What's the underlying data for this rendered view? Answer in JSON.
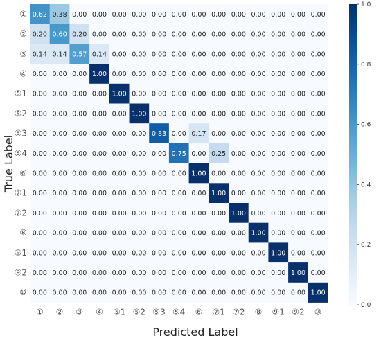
{
  "chart_data": {
    "type": "heatmap",
    "xlabel": "Predicted Label",
    "ylabel": "True Label",
    "labels": [
      "①",
      "②",
      "③",
      "④",
      "⑤1",
      "⑤2",
      "⑤3",
      "⑤4",
      "⑥",
      "⑦1",
      "⑦2",
      "⑧",
      "⑨1",
      "⑨2",
      "⑩"
    ],
    "matrix": [
      [
        0.62,
        0.38,
        0,
        0,
        0,
        0,
        0,
        0,
        0,
        0,
        0,
        0,
        0,
        0,
        0
      ],
      [
        0.2,
        0.6,
        0.2,
        0,
        0,
        0,
        0,
        0,
        0,
        0,
        0,
        0,
        0,
        0,
        0
      ],
      [
        0.14,
        0.14,
        0.57,
        0.14,
        0,
        0,
        0,
        0,
        0,
        0,
        0,
        0,
        0,
        0,
        0
      ],
      [
        0,
        0,
        0,
        1.0,
        0,
        0,
        0,
        0,
        0,
        0,
        0,
        0,
        0,
        0,
        0
      ],
      [
        0,
        0,
        0,
        0,
        1.0,
        0,
        0,
        0,
        0,
        0,
        0,
        0,
        0,
        0,
        0
      ],
      [
        0,
        0,
        0,
        0,
        0,
        1.0,
        0,
        0,
        0,
        0,
        0,
        0,
        0,
        0,
        0
      ],
      [
        0,
        0,
        0,
        0,
        0,
        0,
        0.83,
        0,
        0.17,
        0,
        0,
        0,
        0,
        0,
        0
      ],
      [
        0,
        0,
        0,
        0,
        0,
        0,
        0,
        0.75,
        0,
        0.25,
        0,
        0,
        0,
        0,
        0
      ],
      [
        0,
        0,
        0,
        0,
        0,
        0,
        0,
        0,
        1.0,
        0,
        0,
        0,
        0,
        0,
        0
      ],
      [
        0,
        0,
        0,
        0,
        0,
        0,
        0,
        0,
        0,
        1.0,
        0,
        0,
        0,
        0,
        0
      ],
      [
        0,
        0,
        0,
        0,
        0,
        0,
        0,
        0,
        0,
        0,
        1.0,
        0,
        0,
        0,
        0
      ],
      [
        0,
        0,
        0,
        0,
        0,
        0,
        0,
        0,
        0,
        0,
        0,
        1.0,
        0,
        0,
        0
      ],
      [
        0,
        0,
        0,
        0,
        0,
        0,
        0,
        0,
        0,
        0,
        0,
        0,
        1.0,
        0,
        0
      ],
      [
        0,
        0,
        0,
        0,
        0,
        0,
        0,
        0,
        0,
        0,
        0,
        0,
        0,
        1.0,
        0
      ],
      [
        0,
        0,
        0,
        0,
        0,
        0,
        0,
        0,
        0,
        0,
        0,
        0,
        0,
        0,
        1.0
      ]
    ],
    "colorbar": {
      "range": [
        0.0,
        1.0
      ],
      "ticks": [
        "0.0",
        "0.2",
        "0.4",
        "0.6",
        "0.8",
        "1.0"
      ],
      "colormap": "Blues"
    },
    "value_format": "2 decimals",
    "grid": false
  }
}
